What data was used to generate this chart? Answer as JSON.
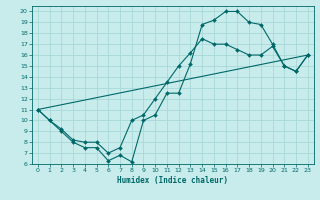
{
  "xlabel": "Humidex (Indice chaleur)",
  "bg_color": "#c8ecec",
  "grid_color": "#a8d8d8",
  "line_color": "#006868",
  "xlim": [
    -0.5,
    23.5
  ],
  "ylim": [
    6,
    20.5
  ],
  "xticks": [
    0,
    1,
    2,
    3,
    4,
    5,
    6,
    7,
    8,
    9,
    10,
    11,
    12,
    13,
    14,
    15,
    16,
    17,
    18,
    19,
    20,
    21,
    22,
    23
  ],
  "yticks": [
    6,
    7,
    8,
    9,
    10,
    11,
    12,
    13,
    14,
    15,
    16,
    17,
    18,
    19,
    20
  ],
  "line1_x": [
    0,
    1,
    2,
    3,
    4,
    5,
    6,
    7,
    8,
    9,
    10,
    11,
    12,
    13,
    14,
    15,
    16,
    17,
    18,
    19,
    20,
    21,
    22,
    23
  ],
  "line1_y": [
    11,
    10,
    9,
    8,
    7.5,
    7.5,
    6.3,
    6.8,
    6.2,
    10,
    10.5,
    12.5,
    12.5,
    15.2,
    18.8,
    19.2,
    20,
    20,
    19,
    18.8,
    17,
    15,
    14.5,
    16
  ],
  "line2_x": [
    0,
    1,
    2,
    3,
    4,
    5,
    6,
    7,
    8,
    9,
    10,
    11,
    12,
    13,
    14,
    15,
    16,
    17,
    18,
    19,
    20,
    21,
    22,
    23
  ],
  "line2_y": [
    11,
    10,
    9.2,
    8.2,
    8.0,
    8.0,
    7.0,
    7.5,
    10,
    10.5,
    12,
    13.5,
    15,
    16.2,
    17.5,
    17,
    17,
    16.5,
    16,
    16,
    16.8,
    15,
    14.5,
    16
  ],
  "line3_x": [
    0,
    23
  ],
  "line3_y": [
    11,
    16
  ]
}
